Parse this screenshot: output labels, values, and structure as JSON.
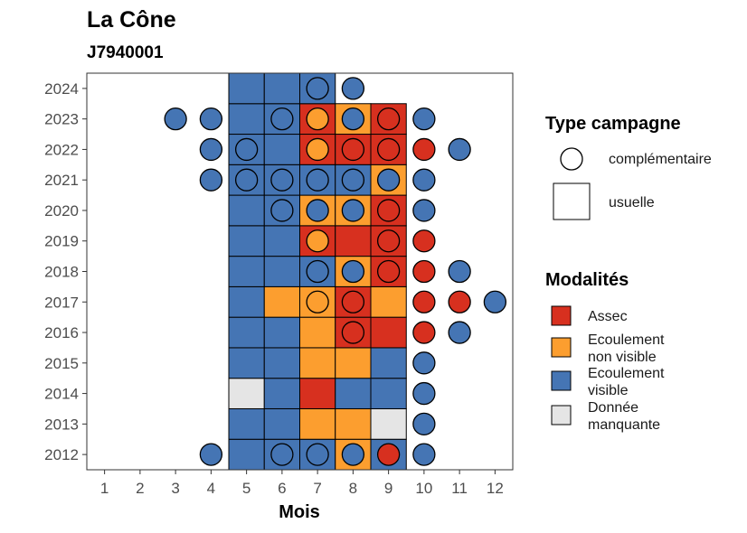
{
  "chart_data": {
    "type": "heatmap",
    "title": "La Cône",
    "subtitle": "J7940001",
    "xlabel": "Mois",
    "ylabel": "",
    "x_ticks": [
      1,
      2,
      3,
      4,
      5,
      6,
      7,
      8,
      9,
      10,
      11,
      12
    ],
    "y_ticks": [
      2012,
      2013,
      2014,
      2015,
      2016,
      2017,
      2018,
      2019,
      2020,
      2021,
      2022,
      2023,
      2024
    ],
    "xlim": [
      0.5,
      12.5
    ],
    "ylim": [
      2011.5,
      2024.5
    ],
    "colors": {
      "assec": "#d7301f",
      "ecoulement_non_visible": "#fc9e2f",
      "ecoulement_visible": "#4575b4",
      "donnee_manquante": "#e5e5e5"
    },
    "legend_shape": {
      "title": "Type campagne",
      "items": [
        {
          "label": "complémentaire",
          "shape": "circle"
        },
        {
          "label": "usuelle",
          "shape": "square"
        }
      ]
    },
    "legend_fill": {
      "title": "Modalités",
      "items": [
        {
          "key": "assec",
          "label_lines": [
            "Assec"
          ]
        },
        {
          "key": "ecoulement_non_visible",
          "label_lines": [
            "Ecoulement",
            "non visible"
          ]
        },
        {
          "key": "ecoulement_visible",
          "label_lines": [
            "Ecoulement",
            "visible"
          ]
        },
        {
          "key": "donnee_manquante",
          "label_lines": [
            "Donnée",
            "manquante"
          ]
        }
      ]
    },
    "usuelle": [
      {
        "year": 2012,
        "month": 5,
        "value": "ecoulement_visible"
      },
      {
        "year": 2012,
        "month": 6,
        "value": "ecoulement_visible"
      },
      {
        "year": 2012,
        "month": 7,
        "value": "ecoulement_visible"
      },
      {
        "year": 2012,
        "month": 8,
        "value": "ecoulement_non_visible"
      },
      {
        "year": 2012,
        "month": 9,
        "value": "ecoulement_visible"
      },
      {
        "year": 2013,
        "month": 5,
        "value": "ecoulement_visible"
      },
      {
        "year": 2013,
        "month": 6,
        "value": "ecoulement_visible"
      },
      {
        "year": 2013,
        "month": 7,
        "value": "ecoulement_non_visible"
      },
      {
        "year": 2013,
        "month": 8,
        "value": "ecoulement_non_visible"
      },
      {
        "year": 2013,
        "month": 9,
        "value": "donnee_manquante"
      },
      {
        "year": 2014,
        "month": 5,
        "value": "donnee_manquante"
      },
      {
        "year": 2014,
        "month": 6,
        "value": "ecoulement_visible"
      },
      {
        "year": 2014,
        "month": 7,
        "value": "assec"
      },
      {
        "year": 2014,
        "month": 8,
        "value": "ecoulement_visible"
      },
      {
        "year": 2014,
        "month": 9,
        "value": "ecoulement_visible"
      },
      {
        "year": 2015,
        "month": 5,
        "value": "ecoulement_visible"
      },
      {
        "year": 2015,
        "month": 6,
        "value": "ecoulement_visible"
      },
      {
        "year": 2015,
        "month": 7,
        "value": "ecoulement_non_visible"
      },
      {
        "year": 2015,
        "month": 8,
        "value": "ecoulement_non_visible"
      },
      {
        "year": 2015,
        "month": 9,
        "value": "ecoulement_visible"
      },
      {
        "year": 2016,
        "month": 5,
        "value": "ecoulement_visible"
      },
      {
        "year": 2016,
        "month": 6,
        "value": "ecoulement_visible"
      },
      {
        "year": 2016,
        "month": 7,
        "value": "ecoulement_non_visible"
      },
      {
        "year": 2016,
        "month": 8,
        "value": "assec"
      },
      {
        "year": 2016,
        "month": 9,
        "value": "assec"
      },
      {
        "year": 2017,
        "month": 5,
        "value": "ecoulement_visible"
      },
      {
        "year": 2017,
        "month": 6,
        "value": "ecoulement_non_visible"
      },
      {
        "year": 2017,
        "month": 7,
        "value": "ecoulement_non_visible"
      },
      {
        "year": 2017,
        "month": 8,
        "value": "assec"
      },
      {
        "year": 2017,
        "month": 9,
        "value": "ecoulement_non_visible"
      },
      {
        "year": 2018,
        "month": 5,
        "value": "ecoulement_visible"
      },
      {
        "year": 2018,
        "month": 6,
        "value": "ecoulement_visible"
      },
      {
        "year": 2018,
        "month": 7,
        "value": "ecoulement_visible"
      },
      {
        "year": 2018,
        "month": 8,
        "value": "ecoulement_non_visible"
      },
      {
        "year": 2018,
        "month": 9,
        "value": "assec"
      },
      {
        "year": 2019,
        "month": 5,
        "value": "ecoulement_visible"
      },
      {
        "year": 2019,
        "month": 6,
        "value": "ecoulement_visible"
      },
      {
        "year": 2019,
        "month": 7,
        "value": "assec"
      },
      {
        "year": 2019,
        "month": 8,
        "value": "assec"
      },
      {
        "year": 2019,
        "month": 9,
        "value": "assec"
      },
      {
        "year": 2020,
        "month": 5,
        "value": "ecoulement_visible"
      },
      {
        "year": 2020,
        "month": 6,
        "value": "ecoulement_visible"
      },
      {
        "year": 2020,
        "month": 7,
        "value": "ecoulement_non_visible"
      },
      {
        "year": 2020,
        "month": 8,
        "value": "ecoulement_non_visible"
      },
      {
        "year": 2020,
        "month": 9,
        "value": "assec"
      },
      {
        "year": 2021,
        "month": 5,
        "value": "ecoulement_visible"
      },
      {
        "year": 2021,
        "month": 6,
        "value": "ecoulement_visible"
      },
      {
        "year": 2021,
        "month": 7,
        "value": "ecoulement_visible"
      },
      {
        "year": 2021,
        "month": 8,
        "value": "ecoulement_visible"
      },
      {
        "year": 2021,
        "month": 9,
        "value": "ecoulement_non_visible"
      },
      {
        "year": 2022,
        "month": 5,
        "value": "ecoulement_visible"
      },
      {
        "year": 2022,
        "month": 6,
        "value": "ecoulement_visible"
      },
      {
        "year": 2022,
        "month": 7,
        "value": "assec"
      },
      {
        "year": 2022,
        "month": 8,
        "value": "assec"
      },
      {
        "year": 2022,
        "month": 9,
        "value": "assec"
      },
      {
        "year": 2023,
        "month": 5,
        "value": "ecoulement_visible"
      },
      {
        "year": 2023,
        "month": 6,
        "value": "ecoulement_visible"
      },
      {
        "year": 2023,
        "month": 7,
        "value": "assec"
      },
      {
        "year": 2023,
        "month": 8,
        "value": "ecoulement_non_visible"
      },
      {
        "year": 2023,
        "month": 9,
        "value": "assec"
      },
      {
        "year": 2024,
        "month": 5,
        "value": "ecoulement_visible"
      },
      {
        "year": 2024,
        "month": 6,
        "value": "ecoulement_visible"
      },
      {
        "year": 2024,
        "month": 7,
        "value": "ecoulement_visible"
      }
    ],
    "complementaire": [
      {
        "year": 2012,
        "month": 4,
        "value": "ecoulement_visible"
      },
      {
        "year": 2012,
        "month": 6,
        "value": "ecoulement_visible"
      },
      {
        "year": 2012,
        "month": 7,
        "value": "ecoulement_visible"
      },
      {
        "year": 2012,
        "month": 8,
        "value": "ecoulement_visible"
      },
      {
        "year": 2012,
        "month": 9,
        "value": "assec"
      },
      {
        "year": 2012,
        "month": 10,
        "value": "ecoulement_visible"
      },
      {
        "year": 2013,
        "month": 10,
        "value": "ecoulement_visible"
      },
      {
        "year": 2014,
        "month": 10,
        "value": "ecoulement_visible"
      },
      {
        "year": 2015,
        "month": 10,
        "value": "ecoulement_visible"
      },
      {
        "year": 2016,
        "month": 8,
        "value": "assec"
      },
      {
        "year": 2016,
        "month": 10,
        "value": "assec"
      },
      {
        "year": 2016,
        "month": 11,
        "value": "ecoulement_visible"
      },
      {
        "year": 2017,
        "month": 7,
        "value": "ecoulement_non_visible"
      },
      {
        "year": 2017,
        "month": 8,
        "value": "assec"
      },
      {
        "year": 2017,
        "month": 10,
        "value": "assec"
      },
      {
        "year": 2017,
        "month": 11,
        "value": "assec"
      },
      {
        "year": 2017,
        "month": 12,
        "value": "ecoulement_visible"
      },
      {
        "year": 2018,
        "month": 7,
        "value": "ecoulement_visible"
      },
      {
        "year": 2018,
        "month": 8,
        "value": "ecoulement_visible"
      },
      {
        "year": 2018,
        "month": 9,
        "value": "assec"
      },
      {
        "year": 2018,
        "month": 10,
        "value": "assec"
      },
      {
        "year": 2018,
        "month": 11,
        "value": "ecoulement_visible"
      },
      {
        "year": 2019,
        "month": 7,
        "value": "ecoulement_non_visible"
      },
      {
        "year": 2019,
        "month": 9,
        "value": "assec"
      },
      {
        "year": 2019,
        "month": 10,
        "value": "assec"
      },
      {
        "year": 2020,
        "month": 6,
        "value": "ecoulement_visible"
      },
      {
        "year": 2020,
        "month": 7,
        "value": "ecoulement_visible"
      },
      {
        "year": 2020,
        "month": 8,
        "value": "ecoulement_visible"
      },
      {
        "year": 2020,
        "month": 9,
        "value": "assec"
      },
      {
        "year": 2020,
        "month": 10,
        "value": "ecoulement_visible"
      },
      {
        "year": 2021,
        "month": 4,
        "value": "ecoulement_visible"
      },
      {
        "year": 2021,
        "month": 5,
        "value": "ecoulement_visible"
      },
      {
        "year": 2021,
        "month": 6,
        "value": "ecoulement_visible"
      },
      {
        "year": 2021,
        "month": 7,
        "value": "ecoulement_visible"
      },
      {
        "year": 2021,
        "month": 8,
        "value": "ecoulement_visible"
      },
      {
        "year": 2021,
        "month": 9,
        "value": "ecoulement_visible"
      },
      {
        "year": 2021,
        "month": 10,
        "value": "ecoulement_visible"
      },
      {
        "year": 2022,
        "month": 4,
        "value": "ecoulement_visible"
      },
      {
        "year": 2022,
        "month": 5,
        "value": "ecoulement_visible"
      },
      {
        "year": 2022,
        "month": 7,
        "value": "ecoulement_non_visible"
      },
      {
        "year": 2022,
        "month": 8,
        "value": "assec"
      },
      {
        "year": 2022,
        "month": 9,
        "value": "assec"
      },
      {
        "year": 2022,
        "month": 10,
        "value": "assec"
      },
      {
        "year": 2022,
        "month": 11,
        "value": "ecoulement_visible"
      },
      {
        "year": 2023,
        "month": 3,
        "value": "ecoulement_visible"
      },
      {
        "year": 2023,
        "month": 4,
        "value": "ecoulement_visible"
      },
      {
        "year": 2023,
        "month": 6,
        "value": "ecoulement_visible"
      },
      {
        "year": 2023,
        "month": 7,
        "value": "ecoulement_non_visible"
      },
      {
        "year": 2023,
        "month": 8,
        "value": "ecoulement_visible"
      },
      {
        "year": 2023,
        "month": 9,
        "value": "assec"
      },
      {
        "year": 2023,
        "month": 10,
        "value": "ecoulement_visible"
      },
      {
        "year": 2024,
        "month": 7,
        "value": "ecoulement_visible"
      },
      {
        "year": 2024,
        "month": 8,
        "value": "ecoulement_visible"
      }
    ]
  }
}
